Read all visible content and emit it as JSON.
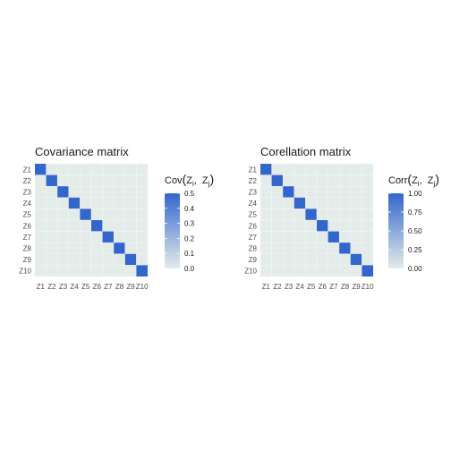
{
  "chart_data": [
    {
      "type": "heatmap",
      "title": "Covariance matrix",
      "legend_title": {
        "func": "Cov",
        "a": "Z",
        "a_sub": "i",
        "b": "Z",
        "b_sub": "j"
      },
      "legend_ticks": [
        "0.0",
        "0.1",
        "0.2",
        "0.3",
        "0.4",
        "0.5"
      ],
      "legend_tick_values": [
        0,
        0.1,
        0.2,
        0.3,
        0.4,
        0.5
      ],
      "legend_range": [
        0,
        0.5
      ],
      "x_labels": [
        "Z1",
        "Z2",
        "Z3",
        "Z4",
        "Z5",
        "Z6",
        "Z7",
        "Z8",
        "Z9",
        "Z10"
      ],
      "y_labels": [
        "Z1",
        "Z2",
        "Z3",
        "Z4",
        "Z5",
        "Z6",
        "Z7",
        "Z8",
        "Z9",
        "Z10"
      ],
      "diagonal_value": 0.5,
      "off_diagonal_value": 0.0,
      "low_color": "#e4ece9",
      "high_color": "#3366cc"
    },
    {
      "type": "heatmap",
      "title": "Corellation matrix",
      "legend_title": {
        "func": "Corr",
        "a": "Z",
        "a_sub": "i",
        "b": "Z",
        "b_sub": "j"
      },
      "legend_ticks": [
        "0.00",
        "0.25",
        "0.50",
        "0.75",
        "1.00"
      ],
      "legend_tick_values": [
        0,
        0.25,
        0.5,
        0.75,
        1.0
      ],
      "legend_range": [
        0,
        1.0
      ],
      "x_labels": [
        "Z1",
        "Z2",
        "Z3",
        "Z4",
        "Z5",
        "Z6",
        "Z7",
        "Z8",
        "Z9",
        "Z10"
      ],
      "y_labels": [
        "Z1",
        "Z2",
        "Z3",
        "Z4",
        "Z5",
        "Z6",
        "Z7",
        "Z8",
        "Z9",
        "Z10"
      ],
      "diagonal_value": 1.0,
      "off_diagonal_value": 0.0,
      "low_color": "#e4ece9",
      "high_color": "#3366cc"
    }
  ]
}
